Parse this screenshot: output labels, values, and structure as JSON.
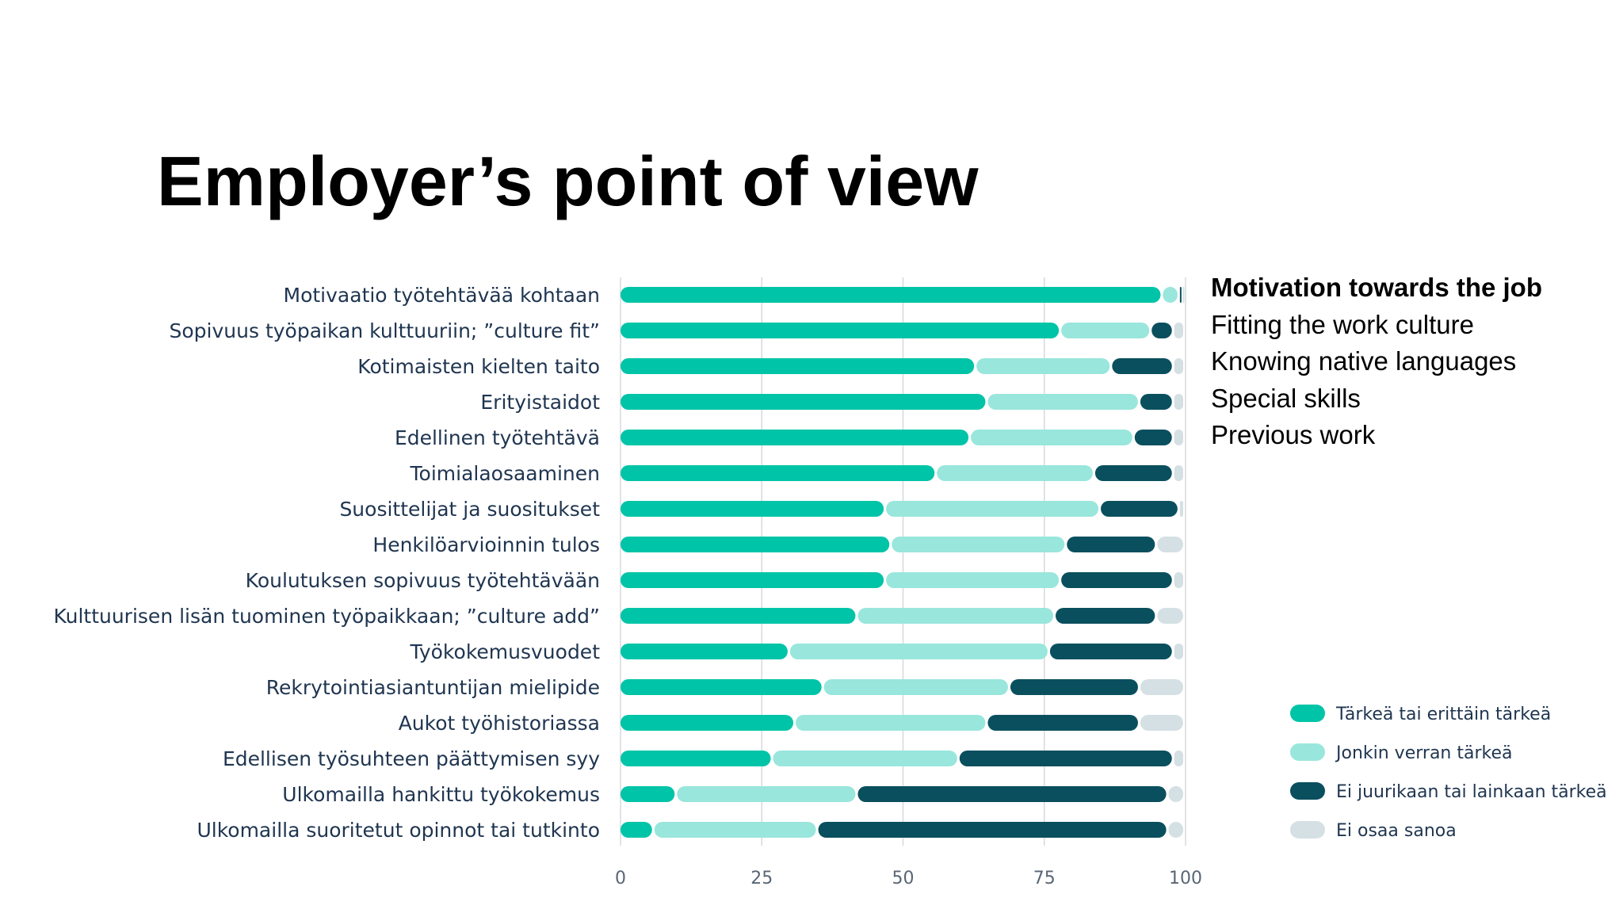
{
  "slide": {
    "title": "Employer’s point of view"
  },
  "translations": [
    "Motivation towards the job",
    "Fitting the work culture",
    "Knowing native languages",
    "Special skills",
    "Previous work"
  ],
  "chart_data": {
    "type": "bar",
    "orientation": "horizontal",
    "stacked": true,
    "title": "",
    "xlabel": "",
    "ylabel": "",
    "xlim": [
      0,
      100
    ],
    "xticks": [
      0,
      25,
      50,
      75,
      100
    ],
    "grid": true,
    "legend_position": "bottom-right",
    "categories": [
      "Motivaatio työtehtävää kohtaan",
      "Sopivuus työpaikan kulttuuriin; ”culture fit”",
      "Kotimaisten kielten taito",
      "Erityistaidot",
      "Edellinen työtehtävä",
      "Toimialaosaaminen",
      "Suosittelijat ja suositukset",
      "Henkilöarvioinnin tulos",
      "Koulutuksen sopivuus työtehtävään",
      "Kulttuurisen lisän tuominen työpaikkaan; ”culture add”",
      "Työkokemusvuodet",
      "Rekrytointiasiantuntijan mielipide",
      "Aukot työhistoriassa",
      "Edellisen työsuhteen päättymisen syy",
      "Ulkomailla hankittu työkokemus",
      "Ulkomailla suoritetut opinnot tai tutkinto"
    ],
    "series": [
      {
        "name": "Tärkeä tai erittäin tärkeä",
        "color": "#00c4a7",
        "values": [
          96,
          78,
          63,
          65,
          62,
          56,
          47,
          48,
          47,
          42,
          30,
          36,
          31,
          27,
          10,
          6
        ]
      },
      {
        "name": "Jonkin verran tärkeä",
        "color": "#99e6dc",
        "values": [
          3,
          16,
          24,
          27,
          29,
          28,
          38,
          31,
          31,
          35,
          46,
          33,
          34,
          33,
          32,
          29
        ]
      },
      {
        "name": "Ei juurikaan tai lainkaan tärkeä",
        "color": "#0a4f5e",
        "values": [
          0.5,
          4,
          11,
          6,
          7,
          14,
          14,
          16,
          20,
          18,
          22,
          23,
          27,
          38,
          55,
          62
        ]
      },
      {
        "name": "Ei osaa sanoa",
        "color": "#d4e0e3",
        "values": [
          0.5,
          2,
          2,
          2,
          2,
          2,
          1,
          5,
          2,
          5,
          2,
          8,
          8,
          2,
          3,
          3
        ]
      }
    ]
  }
}
